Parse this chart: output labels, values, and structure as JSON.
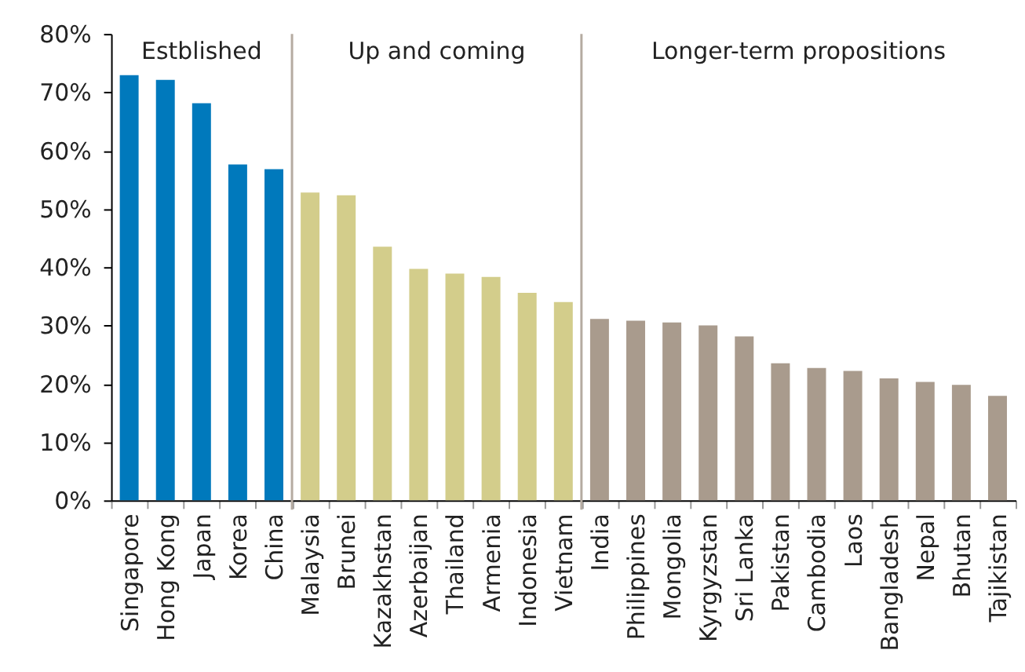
{
  "chart_data": {
    "type": "bar",
    "categories": [
      "Singapore",
      "Hong Kong",
      "Japan",
      "Korea",
      "China",
      "Malaysia",
      "Brunei",
      "Kazakhstan",
      "Azerbaijan",
      "Thailand",
      "Armenia",
      "Indonesia",
      "Vietnam",
      "India",
      "Philippines",
      "Mongolia",
      "Kyrgyzstan",
      "Sri Lanka",
      "Pakistan",
      "Cambodia",
      "Laos",
      "Bangladesh",
      "Nepal",
      "Bhutan",
      "Tajikistan"
    ],
    "series": [
      {
        "color": "#0079bc",
        "values": [
          72.9,
          72.1,
          68.1,
          57.6,
          56.8,
          null,
          null,
          null,
          null,
          null,
          null,
          null,
          null,
          null,
          null,
          null,
          null,
          null,
          null,
          null,
          null,
          null,
          null,
          null,
          null
        ]
      },
      {
        "color": "#d3cd8b",
        "values": [
          null,
          null,
          null,
          null,
          null,
          52.8,
          52.3,
          43.5,
          39.7,
          38.9,
          38.3,
          35.6,
          34.0,
          null,
          null,
          null,
          null,
          null,
          null,
          null,
          null,
          null,
          null,
          null,
          null
        ]
      },
      {
        "color": "#a99b8d",
        "values": [
          null,
          null,
          null,
          null,
          null,
          null,
          null,
          null,
          null,
          null,
          null,
          null,
          null,
          31.1,
          30.8,
          30.5,
          30.0,
          28.1,
          23.5,
          22.7,
          22.2,
          20.9,
          20.3,
          19.8,
          17.9
        ]
      }
    ],
    "annotations": [
      "Estblished",
      "Up and coming",
      "Longer-term propositions"
    ],
    "ylim": [
      0,
      80
    ],
    "yticks": [
      {
        "value": 0,
        "label": "0%"
      },
      {
        "value": 10,
        "label": "10%"
      },
      {
        "value": 20,
        "label": "20%"
      },
      {
        "value": 30,
        "label": "30%"
      },
      {
        "value": 40,
        "label": "40%"
      },
      {
        "value": 50,
        "label": "50%"
      },
      {
        "value": 60,
        "label": "60%"
      },
      {
        "value": 70,
        "label": "70%"
      },
      {
        "value": 80,
        "label": "80%"
      }
    ],
    "grid": false,
    "legend": false
  }
}
